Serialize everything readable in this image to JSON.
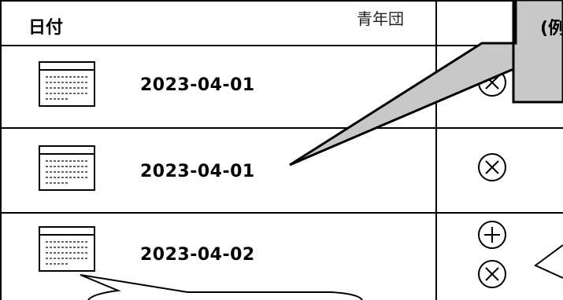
{
  "table": {
    "header": {
      "date_label": "日付",
      "group_label": "青年団"
    },
    "rows": [
      {
        "date": "2023-04-01",
        "actions": [
          "remove"
        ]
      },
      {
        "date": "2023-04-01",
        "actions": [
          "remove"
        ]
      },
      {
        "date": "2023-04-02",
        "actions": [
          "add",
          "remove"
        ]
      }
    ]
  },
  "callout_top_right": {
    "text": "(例"
  },
  "colors": {
    "callout_fill": "#c8c8c8",
    "border": "#000000",
    "background": "#ffffff"
  },
  "icons": {
    "calendar": "calendar-icon",
    "add": "plus-circle-icon",
    "remove": "x-circle-icon"
  }
}
